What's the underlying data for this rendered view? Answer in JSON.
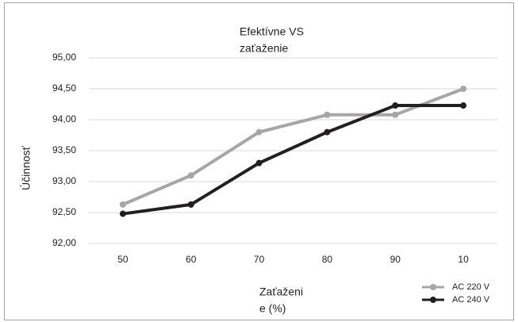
{
  "chart_data": {
    "type": "line",
    "title": [
      "Efektívne VS",
      "zaťaženie"
    ],
    "x_label": [
      "Zaťaženi",
      "e (%)"
    ],
    "y_label": "Účinnosť",
    "categories": [
      "50",
      "60",
      "70",
      "80",
      "90",
      "10"
    ],
    "series": [
      {
        "name": "AC 220 V",
        "color": "#a6a6a6",
        "values": [
          92.63,
          93.1,
          93.8,
          94.08,
          94.08,
          94.5
        ]
      },
      {
        "name": "AC 240 V",
        "color": "#231f20",
        "values": [
          92.48,
          92.63,
          93.3,
          93.8,
          94.23,
          94.23
        ]
      }
    ],
    "ylim": [
      92,
      95
    ],
    "yticks": [
      {
        "value": 92,
        "label": "92,00"
      },
      {
        "value": 92.5,
        "label": "92,50"
      },
      {
        "value": 93,
        "label": "93,00"
      },
      {
        "value": 93.5,
        "label": "93,50"
      },
      {
        "value": 94,
        "label": "94,00"
      },
      {
        "value": 94.5,
        "label": "94,50"
      },
      {
        "value": 95,
        "label": "95,00"
      }
    ],
    "grid": true,
    "legend": "lower right"
  }
}
